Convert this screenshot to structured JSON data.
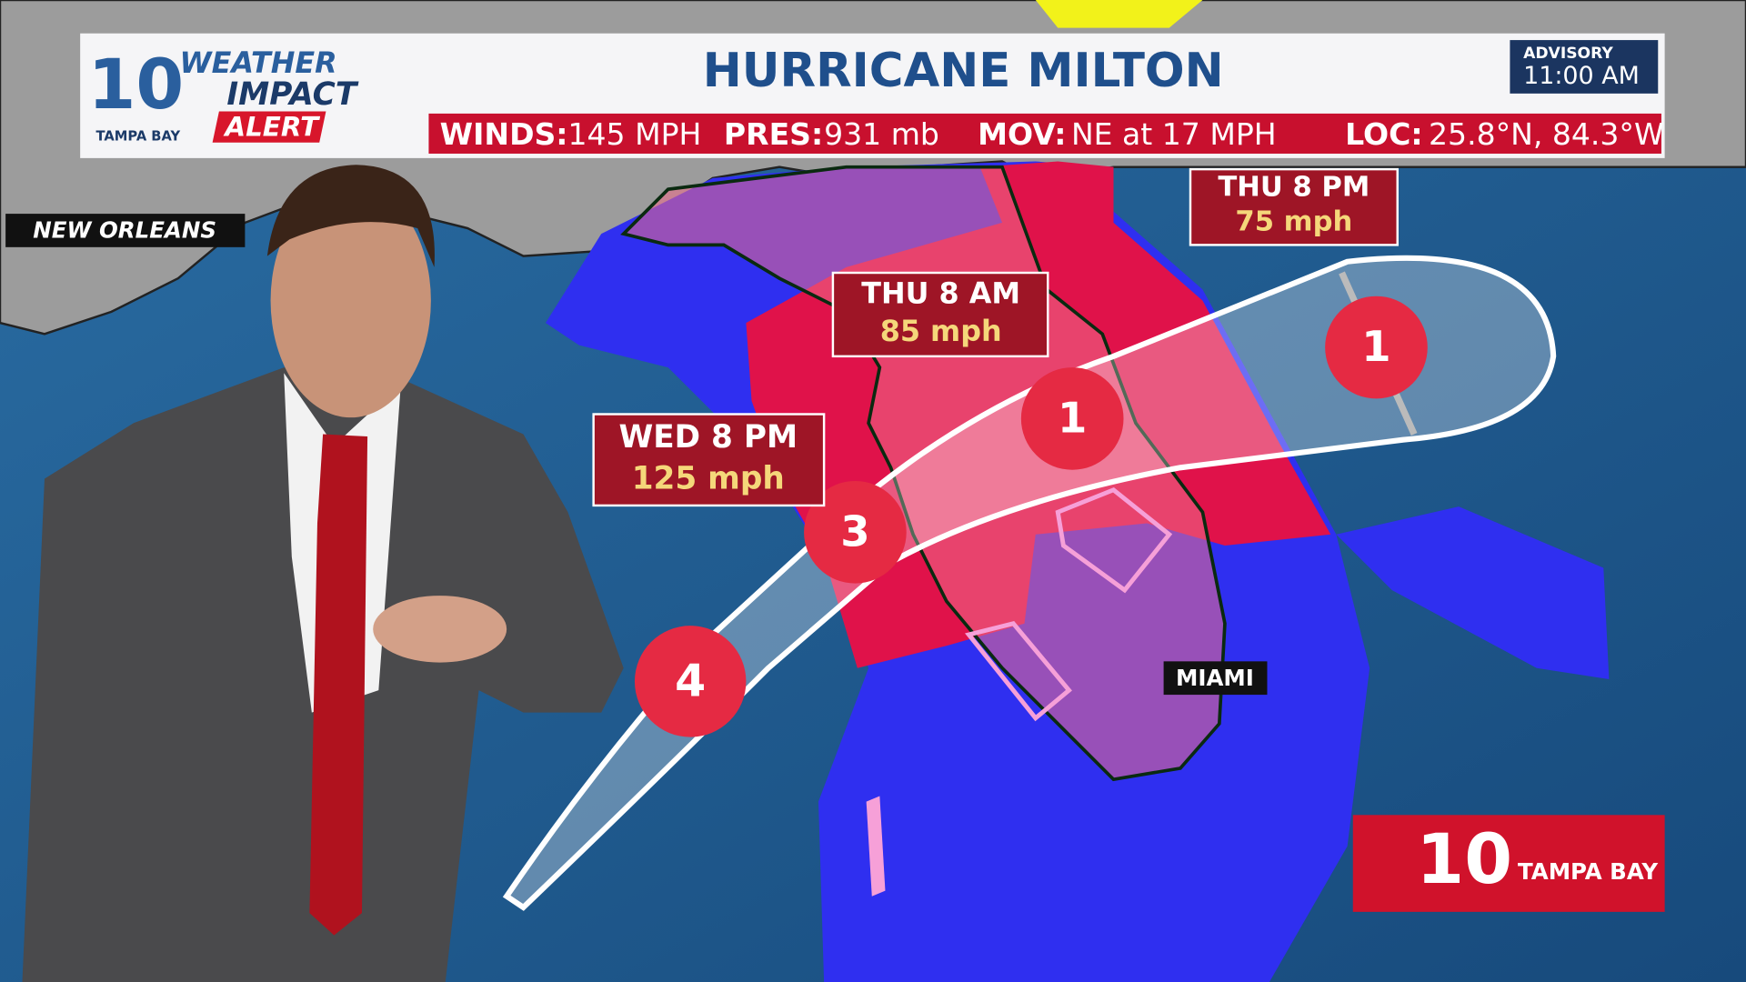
{
  "header": {
    "logo": {
      "number": "10",
      "line1": "WEATHER",
      "line2": "IMPACT",
      "line3": "ALERT",
      "station": "TAMPA BAY"
    },
    "title": "HURRICANE MILTON",
    "advisory": {
      "label": "ADVISORY",
      "time": "11:00 AM"
    },
    "stats": [
      {
        "label": "WINDS:",
        "value": "145 MPH"
      },
      {
        "label": "PRES:",
        "value": "931 mb"
      },
      {
        "label": "MOV:",
        "value": "NE at 17 MPH"
      },
      {
        "label": "LOC:",
        "value": "25.8°N, 84.3°W"
      }
    ]
  },
  "map": {
    "cities": [
      "NEW ORLEANS",
      "MIAMI"
    ],
    "forecast_points": [
      {
        "time": "WED 8 PM",
        "wind": "125 mph"
      },
      {
        "time": "THU 8 AM",
        "wind": "85 mph"
      },
      {
        "time": "THU 8 PM",
        "wind": "75 mph"
      }
    ],
    "storms": [
      "4",
      "3",
      "1",
      "1"
    ]
  },
  "corner_logo": {
    "number": "10",
    "station": "TAMPA BAY"
  }
}
